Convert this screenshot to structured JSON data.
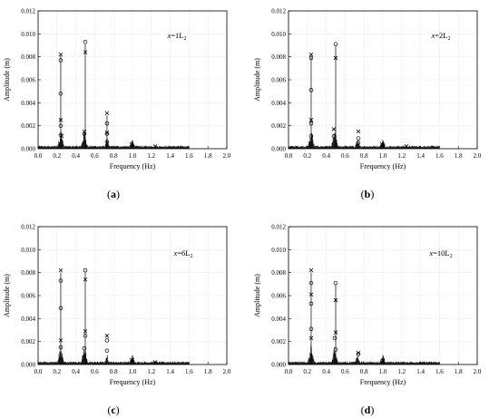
{
  "chart_data": [
    {
      "type": "scatter",
      "panel": "a",
      "caption": "(a)",
      "annotation": {
        "prefix": "x",
        "middle": "=1L",
        "sub": "2"
      },
      "xlabel": "Frequency (Hz)",
      "ylabel": "Amplitude (m)",
      "xlim": [
        0,
        2.0
      ],
      "ylim": [
        0,
        0.012
      ],
      "xticks": [
        "0.0",
        "0.2",
        "0.4",
        "0.6",
        "0.8",
        "1.0",
        "1.2",
        "1.4",
        "1.6",
        "1.8",
        "2.0"
      ],
      "yticks": [
        "0.000",
        "0.002",
        "0.004",
        "0.006",
        "0.008",
        "0.010",
        "0.012"
      ],
      "grid": true,
      "series": [
        {
          "marker": "circle",
          "x": [
            0.24,
            0.24,
            0.24,
            0.24,
            0.5,
            0.49,
            0.73,
            0.73,
            0.73,
            1.0
          ],
          "y": [
            0.0077,
            0.0048,
            0.002,
            0.0012,
            0.0093,
            0.0013,
            0.0022,
            0.0013,
            0.0006,
            0.0003
          ]
        },
        {
          "marker": "cross",
          "x": [
            0.24,
            0.24,
            0.25,
            0.5,
            0.49,
            0.73,
            0.73,
            0.99,
            1.24
          ],
          "y": [
            0.0082,
            0.0025,
            0.0011,
            0.0084,
            0.0015,
            0.0031,
            0.0014,
            0.0004,
            0.0002
          ]
        }
      ],
      "stems": [
        [
          0.24,
          0.0081
        ],
        [
          0.5,
          0.0091
        ],
        [
          0.73,
          0.0029
        ]
      ]
    },
    {
      "type": "scatter",
      "panel": "b",
      "caption": "(b)",
      "annotation": {
        "prefix": "x",
        "middle": "=2L",
        "sub": "2"
      },
      "xlabel": "Frequency (Hz)",
      "ylabel": "Amplitude (m)",
      "xlim": [
        0,
        2.0
      ],
      "ylim": [
        0,
        0.012
      ],
      "xticks": [
        "0.0",
        "0.2",
        "0.4",
        "0.6",
        "0.8",
        "1.0",
        "1.2",
        "1.4",
        "1.6",
        "1.8",
        "2.0"
      ],
      "yticks": [
        "0.000",
        "0.002",
        "0.004",
        "0.006",
        "0.008",
        "0.010",
        "0.012"
      ],
      "grid": true,
      "series": [
        {
          "marker": "circle",
          "x": [
            0.24,
            0.24,
            0.24,
            0.24,
            0.5,
            0.48,
            0.74,
            0.74,
            1.0
          ],
          "y": [
            0.0079,
            0.0051,
            0.0022,
            0.0011,
            0.0091,
            0.0011,
            0.0009,
            0.0005,
            0.0003
          ]
        },
        {
          "marker": "cross",
          "x": [
            0.24,
            0.24,
            0.5,
            0.48,
            0.74,
            0.99,
            1.25
          ],
          "y": [
            0.0082,
            0.0025,
            0.0079,
            0.0017,
            0.0015,
            0.0004,
            0.0002
          ]
        }
      ],
      "stems": [
        [
          0.24,
          0.008
        ],
        [
          0.5,
          0.0089
        ]
      ]
    },
    {
      "type": "scatter",
      "panel": "c",
      "caption": "(c)",
      "annotation": {
        "prefix": "x",
        "middle": "=6L",
        "sub": "2"
      },
      "xlabel": "Frequency (Hz)",
      "ylabel": "Amplitude (m)",
      "xlim": [
        0,
        2.0
      ],
      "ylim": [
        0,
        0.012
      ],
      "xticks": [
        "0.0",
        "0.2",
        "0.4",
        "0.6",
        "0.8",
        "1.0",
        "1.2",
        "1.4",
        "1.6",
        "1.8",
        "2.0"
      ],
      "yticks": [
        "0.000",
        "0.002",
        "0.004",
        "0.006",
        "0.008",
        "0.010",
        "0.012"
      ],
      "grid": true,
      "series": [
        {
          "marker": "circle",
          "x": [
            0.24,
            0.24,
            0.24,
            0.5,
            0.5,
            0.49,
            0.73,
            0.73,
            1.0
          ],
          "y": [
            0.0073,
            0.0049,
            0.0015,
            0.0082,
            0.0025,
            0.0014,
            0.0021,
            0.0012,
            0.0003
          ]
        },
        {
          "marker": "cross",
          "x": [
            0.24,
            0.24,
            0.5,
            0.5,
            0.73,
            0.99,
            1.24
          ],
          "y": [
            0.0082,
            0.0021,
            0.0074,
            0.0029,
            0.0025,
            0.0004,
            0.0002
          ]
        }
      ],
      "stems": [
        [
          0.24,
          0.008
        ],
        [
          0.5,
          0.008
        ]
      ]
    },
    {
      "type": "scatter",
      "panel": "d",
      "caption": "(d)",
      "annotation": {
        "prefix": "x",
        "middle": "=10L",
        "sub": "2"
      },
      "xlabel": "Frequency (Hz)",
      "ylabel": "Amplitude (m)",
      "xlim": [
        0,
        2.0
      ],
      "ylim": [
        0,
        0.012
      ],
      "xticks": [
        "0.0",
        "0.2",
        "0.4",
        "0.6",
        "0.8",
        "1.0",
        "1.2",
        "1.4",
        "1.6",
        "1.8",
        "2.0"
      ],
      "yticks": [
        "0.000",
        "0.002",
        "0.004",
        "0.006",
        "0.008",
        "0.010",
        "0.012"
      ],
      "grid": true,
      "series": [
        {
          "marker": "circle",
          "x": [
            0.24,
            0.24,
            0.24,
            0.5,
            0.49,
            0.5,
            0.74,
            0.99
          ],
          "y": [
            0.0071,
            0.0053,
            0.0031,
            0.0071,
            0.0023,
            0.0013,
            0.0009,
            0.0003
          ]
        },
        {
          "marker": "cross",
          "x": [
            0.24,
            0.24,
            0.24,
            0.5,
            0.5,
            0.74,
            1.0
          ],
          "y": [
            0.0082,
            0.0061,
            0.0023,
            0.0056,
            0.0028,
            0.001,
            0.0003
          ]
        }
      ],
      "stems": [
        [
          0.24,
          0.008
        ],
        [
          0.5,
          0.007
        ]
      ]
    }
  ]
}
